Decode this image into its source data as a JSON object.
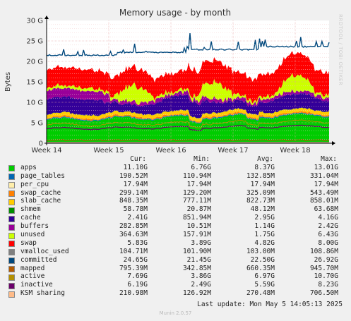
{
  "chart_data": {
    "type": "area",
    "title": "Memory usage - by month",
    "ylabel": "Bytes",
    "ylim": [
      0,
      30
    ],
    "yunit": "G",
    "yticks": [
      "0",
      "5 G",
      "10 G",
      "15 G",
      "20 G",
      "25 G",
      "30 G"
    ],
    "xticks": [
      "Week 14",
      "Week 15",
      "Week 16",
      "Week 17",
      "Week 18"
    ],
    "grid": true,
    "legend_position": "bottom",
    "headers": [
      "Cur:",
      "Min:",
      "Avg:",
      "Max:"
    ],
    "series": [
      {
        "name": "apps",
        "color": "#00cc00",
        "cur": "11.10G",
        "min": "6.76G",
        "avg": "8.37G",
        "max": "13.01G"
      },
      {
        "name": "page_tables",
        "color": "#0066b3",
        "cur": "190.52M",
        "min": "110.94M",
        "avg": "132.85M",
        "max": "331.04M"
      },
      {
        "name": "per_cpu",
        "color": "#ffeeaa",
        "cur": "17.94M",
        "min": "17.94M",
        "avg": "17.94M",
        "max": "17.94M"
      },
      {
        "name": "swap_cache",
        "color": "#ff8000",
        "cur": "299.14M",
        "min": "129.20M",
        "avg": "325.09M",
        "max": "543.49M"
      },
      {
        "name": "slab_cache",
        "color": "#ffcc00",
        "cur": "848.35M",
        "min": "777.11M",
        "avg": "822.73M",
        "max": "858.01M"
      },
      {
        "name": "shmem",
        "color": "#008f00",
        "cur": "58.78M",
        "min": "20.87M",
        "avg": "48.12M",
        "max": "63.68M"
      },
      {
        "name": "cache",
        "color": "#330099",
        "cur": "2.41G",
        "min": "851.94M",
        "avg": "2.95G",
        "max": "4.16G"
      },
      {
        "name": "buffers",
        "color": "#990099",
        "cur": "282.85M",
        "min": "10.51M",
        "avg": "1.14G",
        "max": "2.42G"
      },
      {
        "name": "unused",
        "color": "#ccff00",
        "cur": "364.63M",
        "min": "157.91M",
        "avg": "1.75G",
        "max": "6.43G"
      },
      {
        "name": "swap",
        "color": "#ff0000",
        "cur": "5.83G",
        "min": "3.89G",
        "avg": "4.82G",
        "max": "8.00G"
      },
      {
        "name": "vmalloc_used",
        "color": "#808080",
        "cur": "104.71M",
        "min": "101.90M",
        "avg": "103.00M",
        "max": "108.86M"
      },
      {
        "name": "committed",
        "color": "#00487d",
        "cur": "24.65G",
        "min": "21.45G",
        "avg": "22.50G",
        "max": "26.92G"
      },
      {
        "name": "mapped",
        "color": "#b35a00",
        "cur": "795.39M",
        "min": "342.85M",
        "avg": "660.35M",
        "max": "945.70M"
      },
      {
        "name": "active",
        "color": "#b38f00",
        "cur": "7.69G",
        "min": "3.86G",
        "avg": "6.97G",
        "max": "10.70G"
      },
      {
        "name": "inactive",
        "color": "#6b006b",
        "cur": "6.19G",
        "min": "2.49G",
        "avg": "5.59G",
        "max": "8.23G"
      },
      {
        "name": "KSM sharing",
        "color": "#ffbb88",
        "cur": "210.98M",
        "min": "126.92M",
        "avg": "270.48M",
        "max": "706.50M"
      }
    ]
  },
  "last_update": "Last update: Mon May  5 14:05:13 2025",
  "footer": "Munin 2.0.57",
  "side_label": "RRDTOOL / TOBI OETIKER"
}
